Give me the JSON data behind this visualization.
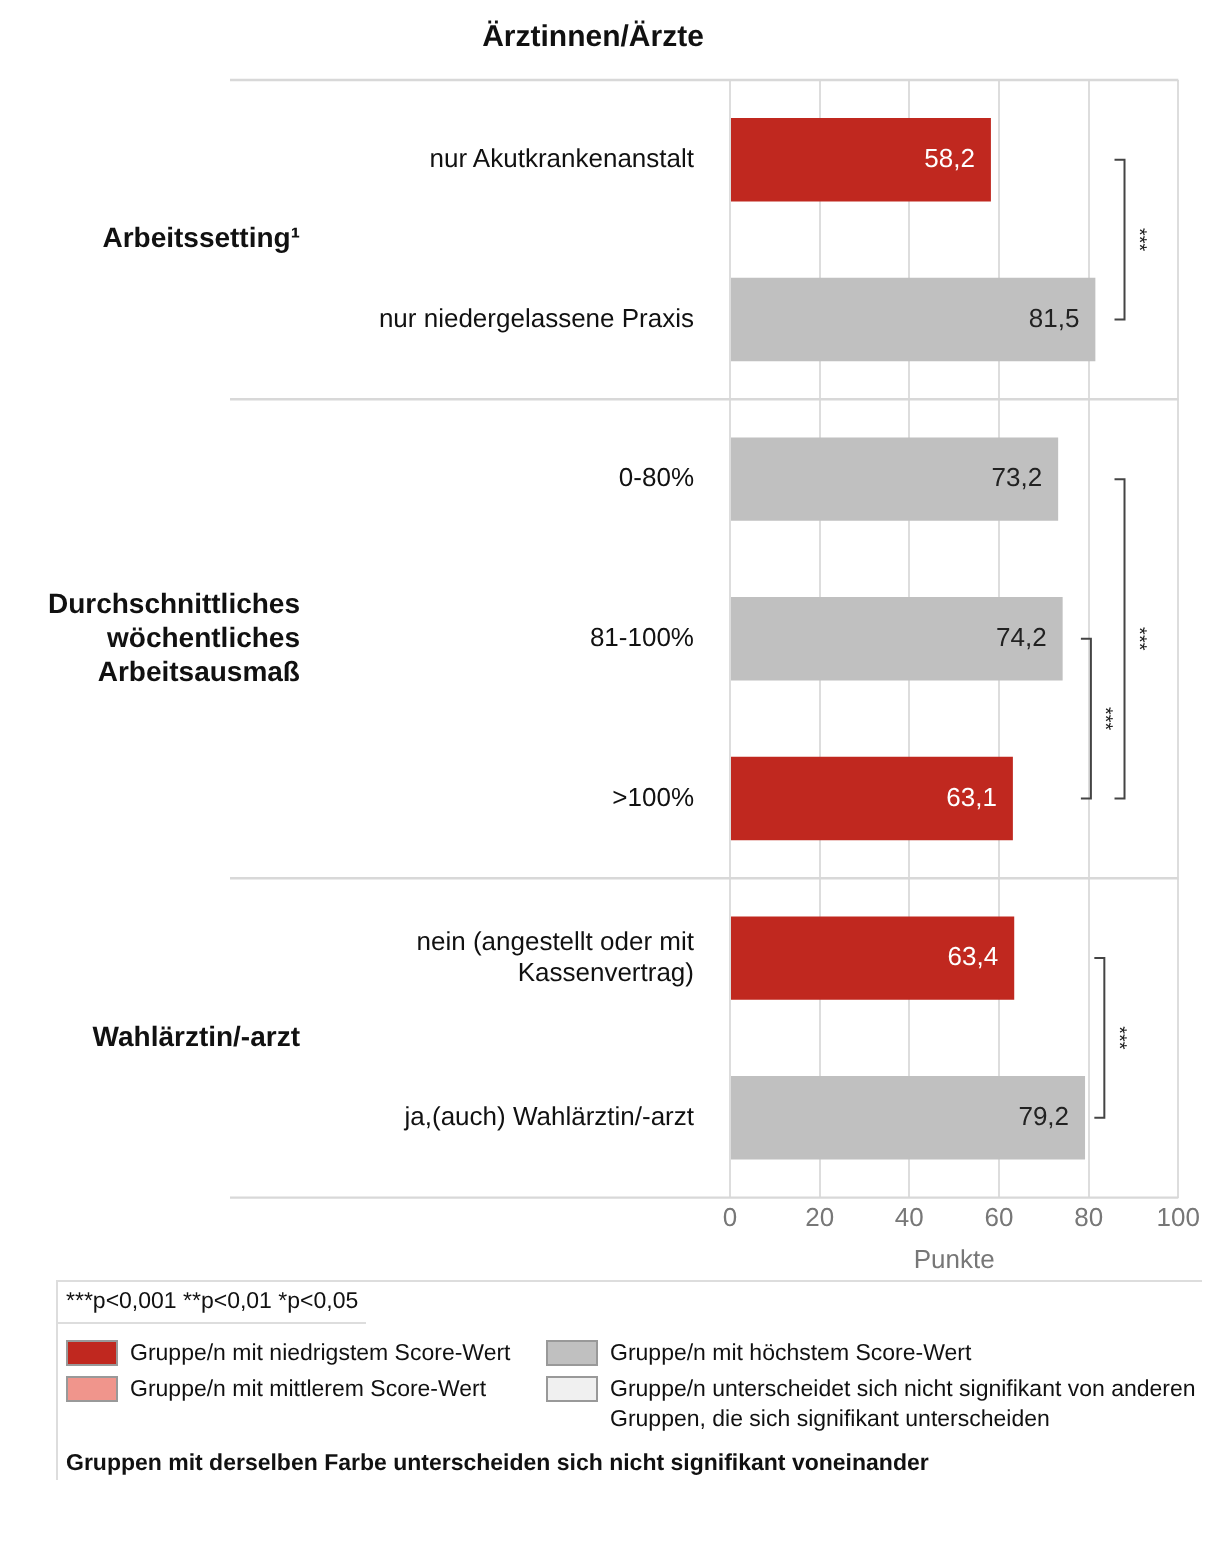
{
  "chart_data": {
    "type": "bar",
    "orientation": "horizontal",
    "stacked": true,
    "title": "Ärztinnen/Ärzte",
    "xlabel": "Punkte",
    "categories": [
      "nur Akutkrankenanstalt",
      "nur niedergelassene Praxis",
      "0-80%",
      "81-100%",
      ">100%",
      "nein (angestellt oder mit Kassenvertrag)",
      "ja,(auch) Wahlärztin/-arzt"
    ],
    "series": [
      {
        "name": "Gruppe/n mit niedrigstem Score-Wert",
        "color": "#c0281f",
        "values": [
          58.2,
          null,
          null,
          null,
          63.1,
          63.4,
          null
        ],
        "value_labels": [
          "58,2",
          null,
          null,
          null,
          "63,1",
          "63,4",
          null
        ]
      },
      {
        "name": "Gruppe/n mit mittlerem Score-Wert",
        "color": "#f0958c",
        "values": [
          null,
          null,
          null,
          null,
          null,
          null,
          null
        ]
      },
      {
        "name": "Gruppe/n mit höchstem Score-Wert",
        "color": "#c0c0c0",
        "values": [
          null,
          81.5,
          73.2,
          74.2,
          null,
          null,
          79.2
        ],
        "value_labels": [
          null,
          "81,5",
          "73,2",
          "74,2",
          null,
          null,
          "79,2"
        ]
      },
      {
        "name": "Gruppe/n unterscheidet sich nicht signifikant von anderen Gruppen, die sich signifikant unterscheiden",
        "color": "#f0f0f0",
        "values": [
          null,
          null,
          null,
          null,
          null,
          null,
          null
        ]
      }
    ],
    "xlim": [
      0,
      100
    ],
    "xticks": [
      0,
      20,
      40,
      60,
      80,
      100
    ],
    "grid": "x",
    "legend": "bottom",
    "annotations": [
      "Arbeitssetting¹",
      "Durchschnittliches wöchentliches Arbeitsausmaß",
      "Wahlärztin/-arzt",
      "***",
      "***",
      "***",
      "***",
      "***p<0,001  **p<0,01  *p<0,05",
      "Gruppen mit derselben Farbe unterscheiden sich nicht signifikant voneinander"
    ]
  }
}
